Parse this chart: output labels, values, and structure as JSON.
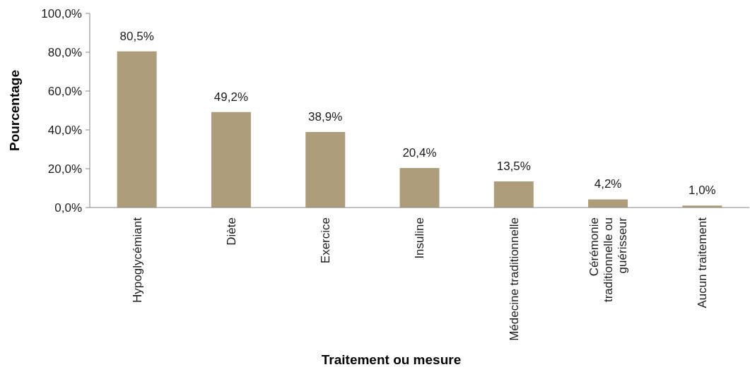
{
  "chart_data": {
    "type": "bar",
    "xlabel": "Traitement ou mesure",
    "ylabel": "Pourcentage",
    "categories": [
      "Hypoglycémiant",
      "Diète",
      "Exercice",
      "Insuline",
      "Médecine traditionnelle",
      "Cérémonie traditionnelle ou guérisseur",
      "Aucun traitement"
    ],
    "values": [
      80.5,
      49.2,
      38.9,
      20.4,
      13.5,
      4.2,
      1.0
    ],
    "color": "#ae9d7a",
    "value_labels": [
      "80,5%",
      "49,2%",
      "38,9%",
      "20,4%",
      "13,5%",
      "4,2%",
      "1,0%"
    ],
    "ylim": [
      0,
      100
    ],
    "yticks": [
      {
        "value": 0,
        "label": "0,0%"
      },
      {
        "value": 20,
        "label": "20,0%"
      },
      {
        "value": 40,
        "label": "40,0%"
      },
      {
        "value": 60,
        "label": "60,0%"
      },
      {
        "value": 80,
        "label": "80,0%"
      },
      {
        "value": 100,
        "label": "100,0%"
      }
    ]
  }
}
